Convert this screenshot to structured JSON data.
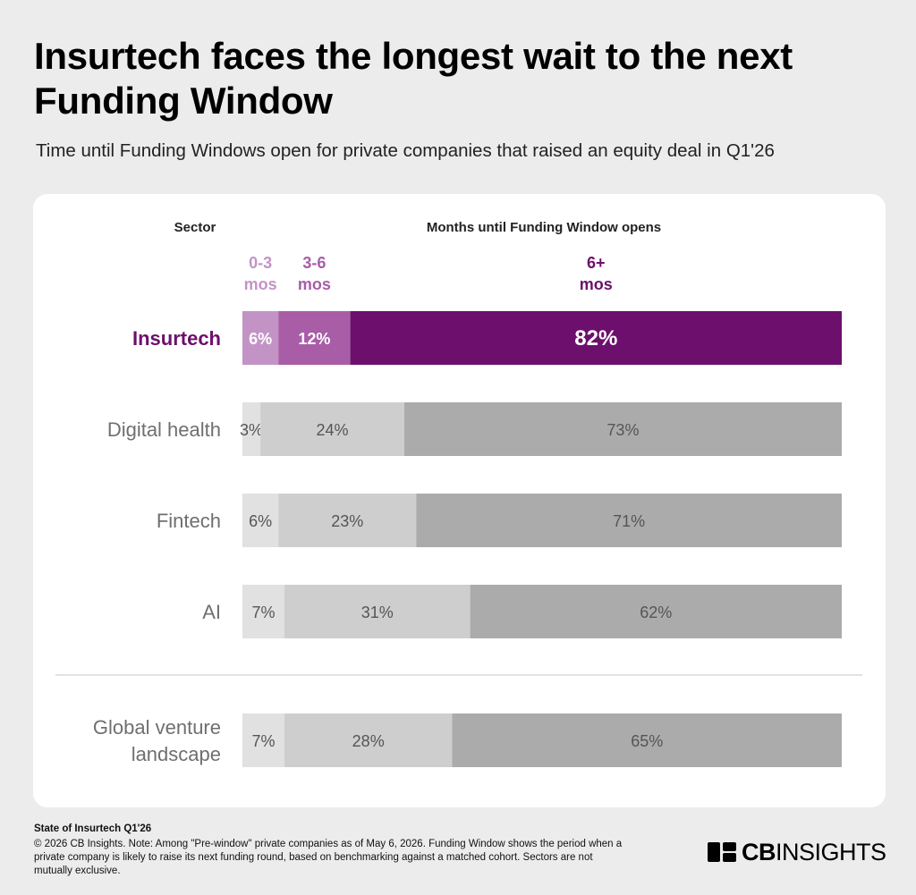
{
  "header": {
    "title": "Insurtech faces the longest wait to the next Funding Window",
    "subtitle": "Time until Funding Windows open for private companies that raised an equity deal in Q1'26"
  },
  "footer": {
    "source_title": "State of Insurtech Q1'26",
    "note": "© 2026 CB Insights. Note: Among \"Pre-window\" private companies as of May 6, 2026. Funding Window shows the period when a private company is likely to raise its next funding round, based on benchmarking against a matched cohort. Sectors are not mutually exclusive.",
    "logo_bold": "CB",
    "logo_light": "INSIGHTS"
  },
  "chart_data": {
    "type": "bar",
    "orientation": "horizontal",
    "stacked": "100%",
    "category_header": "Sector",
    "value_header": "Months until Funding Window opens",
    "segment_labels": [
      [
        "0-3",
        "mos"
      ],
      [
        "3-6",
        "mos"
      ],
      [
        "6+",
        "mos"
      ]
    ],
    "categories": [
      "Insurtech",
      "Digital health",
      "Fintech",
      "AI",
      "Global venture landscape"
    ],
    "category_lines": [
      [
        "Insurtech"
      ],
      [
        "Digital health"
      ],
      [
        "Fintech"
      ],
      [
        "AI"
      ],
      [
        "Global venture",
        "landscape"
      ]
    ],
    "highlight": "Insurtech",
    "series": [
      {
        "name": "0-3 mos",
        "values": [
          6,
          3,
          6,
          7,
          7
        ]
      },
      {
        "name": "3-6 mos",
        "values": [
          12,
          24,
          23,
          31,
          28
        ]
      },
      {
        "name": "6+ mos",
        "values": [
          82,
          73,
          71,
          62,
          65
        ]
      }
    ],
    "value_suffix": "%",
    "colors": {
      "highlight": [
        "#c393c6",
        "#a85da6",
        "#6d0f6c"
      ],
      "other": [
        "#e1e1e1",
        "#cecece",
        "#ababab"
      ],
      "highlight_label": "#6d0f6c",
      "other_label": "#6f6f6f"
    }
  }
}
